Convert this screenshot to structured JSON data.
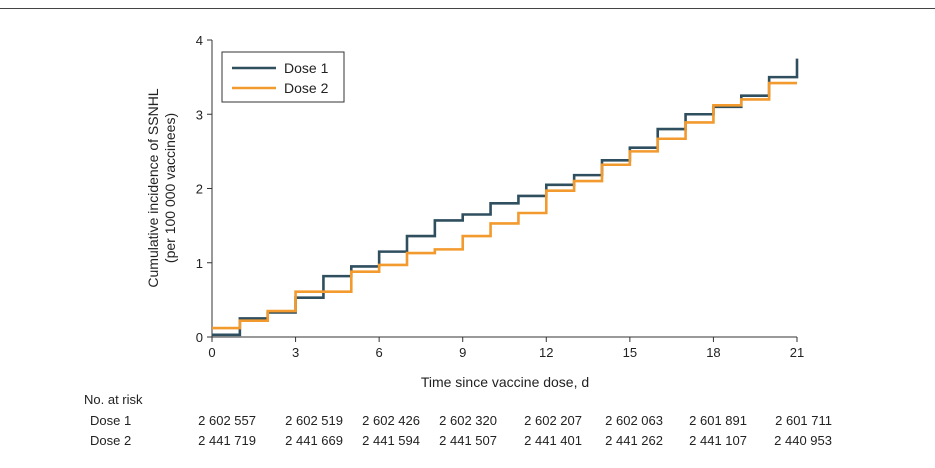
{
  "chart_data": {
    "type": "line",
    "step": true,
    "xlabel": "Time since vaccine dose, d",
    "ylabel_line1": "Cumulative incidence of SSNHL",
    "ylabel_line2": "(per 100 000 vaccinees)",
    "xlim": [
      0,
      21
    ],
    "ylim": [
      0,
      4
    ],
    "x_ticks": [
      "0",
      "3",
      "6",
      "9",
      "12",
      "15",
      "18",
      "21"
    ],
    "y_ticks": [
      "0",
      "1",
      "2",
      "3",
      "4"
    ],
    "grid": false,
    "legend_position": "top-left",
    "series": [
      {
        "name": "Dose 1",
        "color": "#2f4f5f",
        "x": [
          0,
          1,
          2,
          3,
          4,
          5,
          6,
          7,
          8,
          9,
          10,
          11,
          12,
          13,
          14,
          15,
          16,
          17,
          18,
          19,
          20,
          21
        ],
        "y": [
          0.03,
          0.25,
          0.33,
          0.53,
          0.82,
          0.95,
          1.15,
          1.36,
          1.57,
          1.65,
          1.8,
          1.9,
          2.05,
          2.18,
          2.38,
          2.55,
          2.8,
          3.0,
          3.1,
          3.25,
          3.5,
          3.75
        ]
      },
      {
        "name": "Dose 2",
        "color": "#f29a2e",
        "x": [
          0,
          1,
          2,
          3,
          4,
          5,
          6,
          7,
          8,
          9,
          10,
          11,
          12,
          13,
          14,
          15,
          16,
          17,
          18,
          19,
          20,
          21
        ],
        "y": [
          0.12,
          0.22,
          0.35,
          0.61,
          0.61,
          0.88,
          0.97,
          1.13,
          1.18,
          1.36,
          1.53,
          1.67,
          1.97,
          2.1,
          2.32,
          2.5,
          2.67,
          2.89,
          3.12,
          3.2,
          3.42,
          3.42
        ]
      }
    ]
  },
  "risk_table": {
    "title": "No. at risk",
    "rows": [
      {
        "label": "Dose 1",
        "values": [
          "2 602 557",
          "2 602 519",
          "2 602 426",
          "2 602 320",
          "2 602 207",
          "2 602 063",
          "2 601 891",
          "2 601 711"
        ]
      },
      {
        "label": "Dose 2",
        "values": [
          "2 441 719",
          "2 441 669",
          "2 441 594",
          "2 441 507",
          "2 441 401",
          "2 441 262",
          "2 441 107",
          "2 440 953"
        ]
      }
    ]
  }
}
